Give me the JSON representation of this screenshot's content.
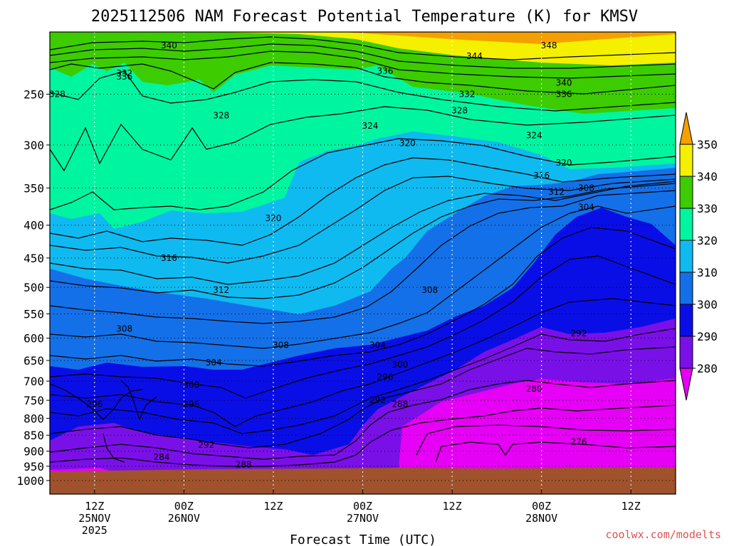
{
  "chart_data": {
    "type": "heatmap",
    "title": "2025112506 NAM Forecast Potential Temperature (K) for KMSV",
    "xlabel": "Forecast Time (UTC)",
    "ylabel": "",
    "x_ticks": [
      {
        "hour": 6,
        "lines": [
          "12Z",
          "25NOV",
          "2025"
        ]
      },
      {
        "hour": 18,
        "lines": [
          "00Z",
          "26NOV"
        ]
      },
      {
        "hour": 30,
        "lines": [
          "12Z"
        ]
      },
      {
        "hour": 42,
        "lines": [
          "00Z",
          "27NOV"
        ]
      },
      {
        "hour": 54,
        "lines": [
          "12Z"
        ]
      },
      {
        "hour": 66,
        "lines": [
          "00Z",
          "28NOV"
        ]
      },
      {
        "hour": 78,
        "lines": [
          "12Z"
        ]
      }
    ],
    "xlim": [
      0,
      84
    ],
    "y_ticks": [
      250,
      300,
      350,
      400,
      450,
      500,
      550,
      600,
      650,
      700,
      750,
      800,
      850,
      900,
      950,
      1000
    ],
    "ylim": [
      200,
      1050
    ],
    "y_scale": "log",
    "surface_pressure_hPa": 960,
    "colorbar": {
      "ticks": [
        350,
        340,
        330,
        320,
        310,
        300,
        290,
        280
      ],
      "bins": [
        {
          "min": 350,
          "max": 360,
          "color": "#f5a000"
        },
        {
          "min": 340,
          "max": 350,
          "color": "#f5f000"
        },
        {
          "min": 330,
          "max": 340,
          "color": "#3ccc00"
        },
        {
          "min": 320,
          "max": 330,
          "color": "#00f5a0"
        },
        {
          "min": 310,
          "max": 320,
          "color": "#0fbaf0"
        },
        {
          "min": 300,
          "max": 310,
          "color": "#1470e8"
        },
        {
          "min": 290,
          "max": 300,
          "color": "#0a0ee6"
        },
        {
          "min": 280,
          "max": 290,
          "color": "#7a10e8"
        },
        {
          "min": 270,
          "max": 280,
          "color": "#e600f5"
        }
      ]
    },
    "contour_interval_K": 2,
    "contour_labels": [
      {
        "t": 10,
        "p": 235,
        "v": "336"
      },
      {
        "t": 16,
        "p": 210,
        "v": "340"
      },
      {
        "t": 10,
        "p": 232,
        "v": "332"
      },
      {
        "t": 1,
        "p": 250,
        "v": "328"
      },
      {
        "t": 23,
        "p": 270,
        "v": "328"
      },
      {
        "t": 45,
        "p": 230,
        "v": "336"
      },
      {
        "t": 57,
        "p": 218,
        "v": "344"
      },
      {
        "t": 67,
        "p": 210,
        "v": "348"
      },
      {
        "t": 69,
        "p": 240,
        "v": "340"
      },
      {
        "t": 69,
        "p": 250,
        "v": "336"
      },
      {
        "t": 56,
        "p": 250,
        "v": "332"
      },
      {
        "t": 55,
        "p": 265,
        "v": "328"
      },
      {
        "t": 43,
        "p": 280,
        "v": "324"
      },
      {
        "t": 48,
        "p": 298,
        "v": "320"
      },
      {
        "t": 65,
        "p": 290,
        "v": "324"
      },
      {
        "t": 69,
        "p": 320,
        "v": "320"
      },
      {
        "t": 66,
        "p": 335,
        "v": "316"
      },
      {
        "t": 68,
        "p": 355,
        "v": "312"
      },
      {
        "t": 72,
        "p": 350,
        "v": "308"
      },
      {
        "t": 72,
        "p": 375,
        "v": "304"
      },
      {
        "t": 30,
        "p": 390,
        "v": "320"
      },
      {
        "t": 16,
        "p": 450,
        "v": "316"
      },
      {
        "t": 23,
        "p": 505,
        "v": "312"
      },
      {
        "t": 51,
        "p": 505,
        "v": "308"
      },
      {
        "t": 10,
        "p": 580,
        "v": "308"
      },
      {
        "t": 31,
        "p": 615,
        "v": "308"
      },
      {
        "t": 44,
        "p": 615,
        "v": "304"
      },
      {
        "t": 22,
        "p": 655,
        "v": "304"
      },
      {
        "t": 47,
        "p": 660,
        "v": "300"
      },
      {
        "t": 71,
        "p": 590,
        "v": "292"
      },
      {
        "t": 19,
        "p": 710,
        "v": "300"
      },
      {
        "t": 45,
        "p": 690,
        "v": "296"
      },
      {
        "t": 65,
        "p": 720,
        "v": "280"
      },
      {
        "t": 6,
        "p": 760,
        "v": "296"
      },
      {
        "t": 19,
        "p": 760,
        "v": "296"
      },
      {
        "t": 44,
        "p": 750,
        "v": "292"
      },
      {
        "t": 47,
        "p": 760,
        "v": "288"
      },
      {
        "t": 71,
        "p": 870,
        "v": "276"
      },
      {
        "t": 21,
        "p": 880,
        "v": "292"
      },
      {
        "t": 15,
        "p": 920,
        "v": "284"
      },
      {
        "t": 26,
        "p": 945,
        "v": "288"
      }
    ]
  },
  "credit": "coolwx.com/modelts"
}
